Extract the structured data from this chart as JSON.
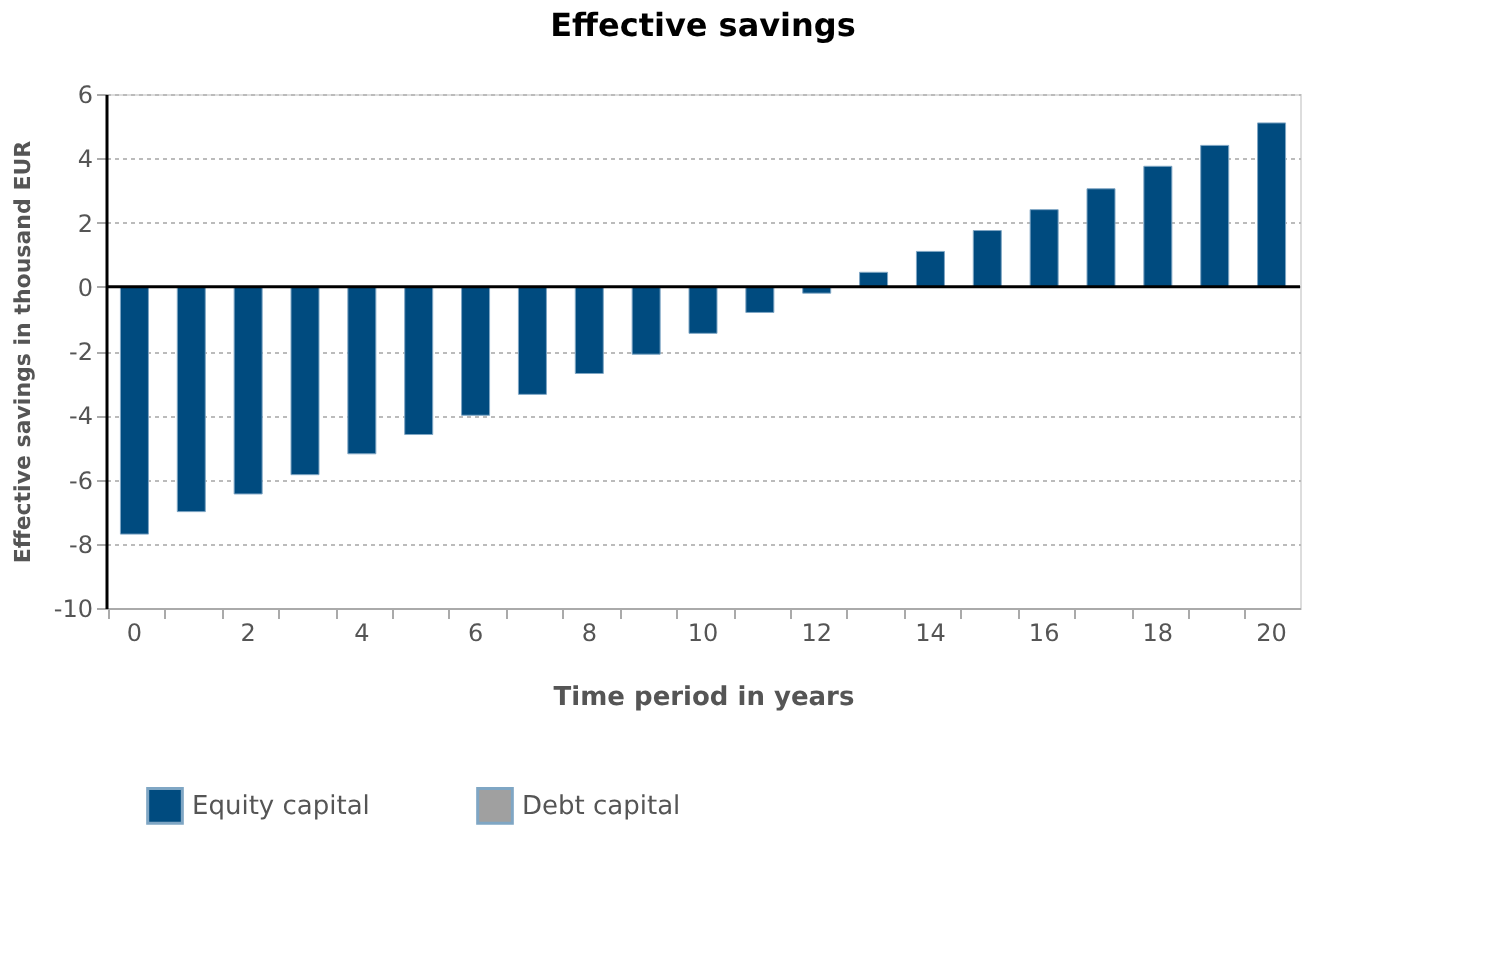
{
  "chart_data": {
    "type": "bar",
    "title": "Effective savings",
    "xlabel": "Time period in years",
    "ylabel": "Effective savings in thousand EUR",
    "categories": [
      "0",
      null,
      "2",
      null,
      "4",
      null,
      "6",
      null,
      "8",
      null,
      "10",
      null,
      "12",
      null,
      "14",
      null,
      "16",
      null,
      "18",
      null,
      "20"
    ],
    "series": [
      {
        "name": "Equity capital",
        "color": "#004b7f",
        "values": [
          -7.7,
          -7.0,
          -6.45,
          -5.85,
          -5.2,
          -4.6,
          -4.0,
          -3.35,
          -2.7,
          -2.1,
          -1.45,
          -0.8,
          -0.2,
          0.45,
          1.1,
          1.75,
          2.4,
          3.05,
          3.75,
          4.4,
          5.1
        ]
      },
      {
        "name": "Debt capital",
        "color": "#a0a0a0",
        "values": [
          null,
          null,
          null,
          null,
          null,
          null,
          null,
          null,
          null,
          null,
          null,
          null,
          null,
          null,
          null,
          null,
          null,
          null,
          null,
          null,
          null
        ]
      }
    ],
    "ylim": [
      -10,
      6
    ],
    "yticks": [
      -10,
      -8,
      -6,
      -4,
      -2,
      0,
      2,
      4,
      6
    ],
    "grid": "y",
    "legend": "bottom"
  }
}
